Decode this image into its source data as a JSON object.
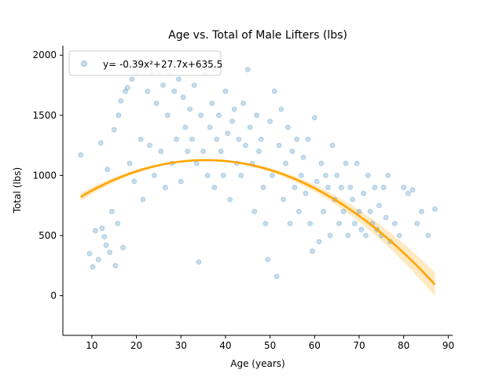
{
  "chart_data": {
    "type": "scatter",
    "title": "Age vs. Total of Male Lifters (lbs)",
    "xlabel": "Age (years)",
    "ylabel": "Total (lbs)",
    "xlim": [
      3.5,
      91
    ],
    "ylim": [
      -330,
      2080
    ],
    "xticks": [
      10,
      20,
      30,
      40,
      50,
      60,
      70,
      80,
      90
    ],
    "yticks": [
      0,
      500,
      1000,
      1500,
      2000
    ],
    "grid": false,
    "legend_placement": "top-left",
    "colors": {
      "scatter": "#1f77b4",
      "fit": "#ffa500",
      "band": "#ffe0a8"
    },
    "series": [
      {
        "type": "scatter",
        "points": [
          [
            7.5,
            1170
          ],
          [
            9.5,
            350
          ],
          [
            10.2,
            240
          ],
          [
            10.8,
            540
          ],
          [
            11.5,
            300
          ],
          [
            12,
            1270
          ],
          [
            12.3,
            560
          ],
          [
            12.8,
            490
          ],
          [
            13.2,
            420
          ],
          [
            13.5,
            1050
          ],
          [
            14,
            360
          ],
          [
            14.5,
            700
          ],
          [
            15,
            1380
          ],
          [
            15.3,
            250
          ],
          [
            15.8,
            600
          ],
          [
            16,
            1500
          ],
          [
            16.5,
            1620
          ],
          [
            17,
            400
          ],
          [
            17.5,
            1700
          ],
          [
            18,
            1730
          ],
          [
            18.5,
            1100
          ],
          [
            19,
            1800
          ],
          [
            19.5,
            950
          ],
          [
            20,
            1850
          ],
          [
            20.5,
            1950
          ],
          [
            21,
            1300
          ],
          [
            21.5,
            800
          ],
          [
            22,
            1900
          ],
          [
            22.5,
            1700
          ],
          [
            23,
            1250
          ],
          [
            23.5,
            1850
          ],
          [
            24,
            1000
          ],
          [
            24.5,
            1600
          ],
          [
            25,
            1860
          ],
          [
            25.5,
            1200
          ],
          [
            26,
            1750
          ],
          [
            26.5,
            900
          ],
          [
            27,
            1500
          ],
          [
            27.5,
            1850
          ],
          [
            28,
            1100
          ],
          [
            28.5,
            1700
          ],
          [
            29,
            1300
          ],
          [
            29.5,
            1800
          ],
          [
            30,
            950
          ],
          [
            30.5,
            1650
          ],
          [
            31,
            1400
          ],
          [
            31.5,
            1200
          ],
          [
            32,
            1550
          ],
          [
            32.5,
            1300
          ],
          [
            33,
            1750
          ],
          [
            33.5,
            1100
          ],
          [
            34,
            280
          ],
          [
            34.5,
            1500
          ],
          [
            35,
            1200
          ],
          [
            35.5,
            1850
          ],
          [
            36,
            1000
          ],
          [
            36.5,
            1400
          ],
          [
            37,
            1600
          ],
          [
            37.5,
            900
          ],
          [
            38,
            1300
          ],
          [
            38.5,
            1500
          ],
          [
            39,
            1200
          ],
          [
            39.5,
            1000
          ],
          [
            40,
            1700
          ],
          [
            40.5,
            1350
          ],
          [
            41,
            800
          ],
          [
            41.5,
            1450
          ],
          [
            42,
            1550
          ],
          [
            42.5,
            1100
          ],
          [
            43,
            1300
          ],
          [
            43.5,
            1000
          ],
          [
            44,
            1600
          ],
          [
            44.5,
            1250
          ],
          [
            45,
            1880
          ],
          [
            45.5,
            1400
          ],
          [
            46,
            1100
          ],
          [
            46.5,
            700
          ],
          [
            47,
            1500
          ],
          [
            47.5,
            1200
          ],
          [
            48,
            1300
          ],
          [
            48.5,
            900
          ],
          [
            49,
            600
          ],
          [
            49.5,
            300
          ],
          [
            50,
            1450
          ],
          [
            50.5,
            1000
          ],
          [
            51,
            1700
          ],
          [
            51.5,
            160
          ],
          [
            52,
            1250
          ],
          [
            52.5,
            1550
          ],
          [
            53,
            800
          ],
          [
            53.5,
            1100
          ],
          [
            54,
            1400
          ],
          [
            54.5,
            600
          ],
          [
            55,
            1200
          ],
          [
            55.5,
            900
          ],
          [
            56,
            1300
          ],
          [
            56.5,
            700
          ],
          [
            57,
            1000
          ],
          [
            57.5,
            1150
          ],
          [
            58,
            850
          ],
          [
            58.5,
            1300
          ],
          [
            59,
            600
          ],
          [
            59.5,
            370
          ],
          [
            60,
            1480
          ],
          [
            60.5,
            950
          ],
          [
            61,
            450
          ],
          [
            61.5,
            1100
          ],
          [
            62,
            700
          ],
          [
            62.5,
            1000
          ],
          [
            63,
            900
          ],
          [
            63.5,
            500
          ],
          [
            64,
            1250
          ],
          [
            64.5,
            800
          ],
          [
            65,
            1000
          ],
          [
            65.5,
            600
          ],
          [
            66,
            900
          ],
          [
            66.5,
            700
          ],
          [
            67,
            1100
          ],
          [
            67.5,
            500
          ],
          [
            68,
            900
          ],
          [
            68.5,
            800
          ],
          [
            69,
            600
          ],
          [
            69.5,
            1100
          ],
          [
            70,
            700
          ],
          [
            70.5,
            550
          ],
          [
            71,
            850
          ],
          [
            71.5,
            500
          ],
          [
            72,
            1000
          ],
          [
            72.5,
            700
          ],
          [
            73,
            600
          ],
          [
            73.5,
            900
          ],
          [
            74,
            550
          ],
          [
            74.5,
            750
          ],
          [
            75,
            500
          ],
          [
            75.5,
            900
          ],
          [
            76,
            650
          ],
          [
            76.5,
            1000
          ],
          [
            77,
            450
          ],
          [
            78,
            600
          ],
          [
            79,
            500
          ],
          [
            80,
            900
          ],
          [
            81,
            850
          ],
          [
            82,
            880
          ],
          [
            83,
            600
          ],
          [
            84,
            700
          ],
          [
            85.5,
            500
          ],
          [
            87,
            720
          ]
        ]
      },
      {
        "name": "y= -0.39x²+27.7x+635.5",
        "type": "line",
        "coefficients": [
          -0.39,
          27.7,
          635.5
        ],
        "x_range": [
          7.5,
          87
        ]
      }
    ]
  }
}
